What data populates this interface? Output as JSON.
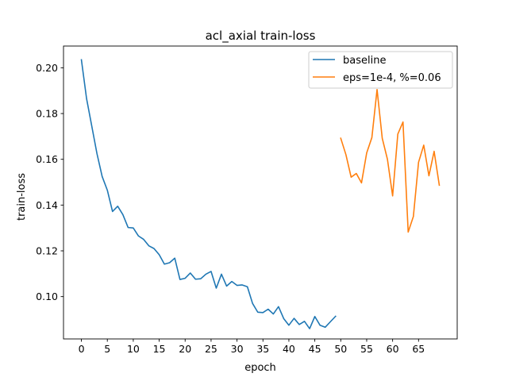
{
  "chart_data": {
    "type": "line",
    "title": "acl_axial train-loss",
    "xlabel": "epoch",
    "ylabel": "train-loss",
    "xlim": [
      -3.45,
      72.45
    ],
    "ylim": [
      0.0815,
      0.2095
    ],
    "xticks": [
      0,
      5,
      10,
      15,
      20,
      25,
      30,
      35,
      40,
      45,
      50,
      55,
      60,
      65
    ],
    "yticks": [
      0.1,
      0.12,
      0.14,
      0.16,
      0.18,
      0.2
    ],
    "ytick_labels": [
      "0.10",
      "0.12",
      "0.14",
      "0.16",
      "0.18",
      "0.20"
    ],
    "grid": false,
    "legend_position": "top-right",
    "series": [
      {
        "name": "baseline",
        "color": "#1f77b4",
        "x": [
          0,
          1,
          2,
          3,
          4,
          5,
          6,
          7,
          8,
          9,
          10,
          11,
          12,
          13,
          14,
          15,
          16,
          17,
          18,
          19,
          20,
          21,
          22,
          23,
          24,
          25,
          26,
          27,
          28,
          29,
          30,
          31,
          32,
          33,
          34,
          35,
          36,
          37,
          38,
          39,
          40,
          41,
          42,
          43,
          44,
          45,
          46,
          47,
          48,
          49
        ],
        "values": [
          0.2035,
          0.1865,
          0.1745,
          0.1625,
          0.1525,
          0.1465,
          0.1372,
          0.1395,
          0.1358,
          0.1302,
          0.13,
          0.1265,
          0.125,
          0.1222,
          0.121,
          0.1183,
          0.1142,
          0.1148,
          0.1168,
          0.1075,
          0.108,
          0.1103,
          0.1076,
          0.1078,
          0.1098,
          0.111,
          0.1037,
          0.1098,
          0.1046,
          0.1066,
          0.1049,
          0.1051,
          0.1043,
          0.097,
          0.0932,
          0.093,
          0.0945,
          0.0924,
          0.0956,
          0.0904,
          0.0875,
          0.0905,
          0.0878,
          0.0892,
          0.086,
          0.0913,
          0.0875,
          0.0866,
          0.089,
          0.0914
        ]
      },
      {
        "name": "eps=1e-4, %=0.06",
        "color": "#ff7f0e",
        "x": [
          50,
          51,
          52,
          53,
          54,
          55,
          56,
          57,
          58,
          59,
          60,
          61,
          62,
          63,
          64,
          65,
          66,
          67,
          68,
          69
        ],
        "values": [
          0.1692,
          0.162,
          0.1522,
          0.1538,
          0.1497,
          0.1628,
          0.1695,
          0.1905,
          0.1692,
          0.16,
          0.144,
          0.171,
          0.1763,
          0.1282,
          0.135,
          0.1587,
          0.1662,
          0.1528,
          0.1635,
          0.1487
        ]
      }
    ]
  }
}
